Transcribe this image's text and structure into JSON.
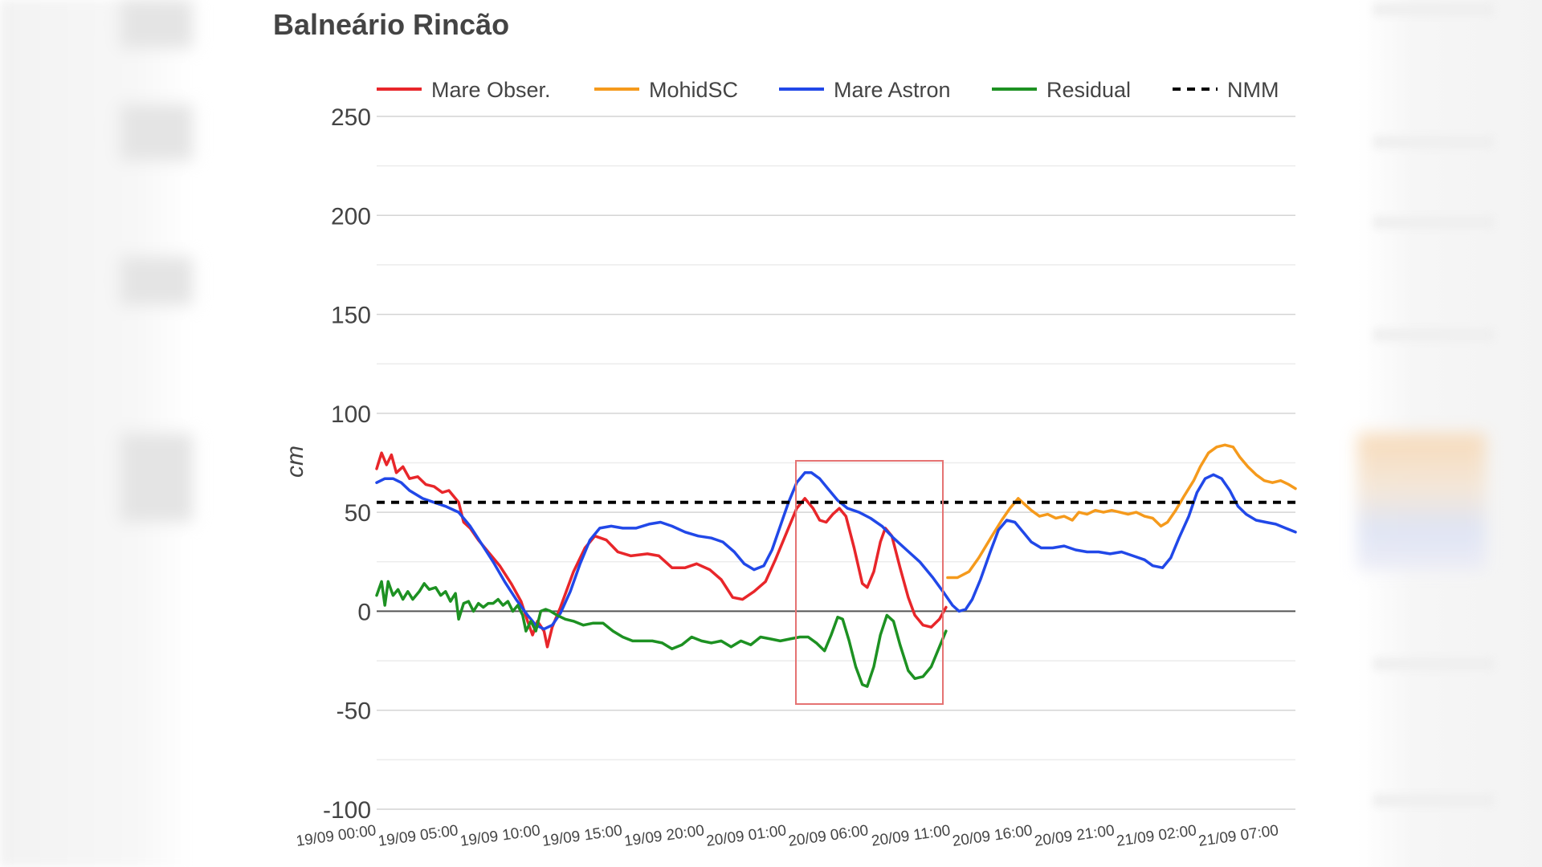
{
  "chart_data": {
    "type": "line",
    "title": "Balneário Rincão",
    "ylabel": "cm",
    "ylim": [
      -100,
      250
    ],
    "yticks": [
      250,
      200,
      150,
      100,
      50,
      0,
      -50,
      -100
    ],
    "grid": true,
    "legend_position": "top",
    "xlim": [
      0,
      56
    ],
    "x_unit": "hours from 19/09 00:00",
    "xtick_labels": [
      "19/09 00:00",
      "19/09 05:00",
      "19/09 10:00",
      "19/09 15:00",
      "19/09 20:00",
      "20/09 01:00",
      "20/09 06:00",
      "20/09 11:00",
      "20/09 16:00",
      "20/09 21:00",
      "21/09 02:00",
      "21/09 07:00"
    ],
    "xtick_values": [
      0,
      5,
      10,
      15,
      20,
      25,
      30,
      35,
      40,
      45,
      50,
      55
    ],
    "series": [
      {
        "name": "Mare Obser.",
        "color": "#e8262a",
        "points": [
          [
            0,
            72
          ],
          [
            0.3,
            80
          ],
          [
            0.6,
            74
          ],
          [
            0.9,
            79
          ],
          [
            1.2,
            70
          ],
          [
            1.6,
            73
          ],
          [
            2,
            67
          ],
          [
            2.5,
            68
          ],
          [
            3,
            64
          ],
          [
            3.5,
            63
          ],
          [
            4,
            60
          ],
          [
            4.4,
            61
          ],
          [
            4.7,
            58
          ],
          [
            5,
            55
          ],
          [
            5.3,
            45
          ],
          [
            5.7,
            42
          ],
          [
            6.2,
            36
          ],
          [
            6.8,
            30
          ],
          [
            7.5,
            23
          ],
          [
            8.2,
            14
          ],
          [
            8.8,
            5
          ],
          [
            9.2,
            -5
          ],
          [
            9.5,
            -12
          ],
          [
            9.8,
            -5
          ],
          [
            10.2,
            -10
          ],
          [
            10.4,
            -18
          ],
          [
            10.7,
            -8
          ],
          [
            11.2,
            2
          ],
          [
            12,
            20
          ],
          [
            12.7,
            32
          ],
          [
            13.3,
            38
          ],
          [
            14,
            36
          ],
          [
            14.7,
            30
          ],
          [
            15.5,
            28
          ],
          [
            16.5,
            29
          ],
          [
            17.2,
            28
          ],
          [
            18,
            22
          ],
          [
            18.8,
            22
          ],
          [
            19.5,
            24
          ],
          [
            20.3,
            21
          ],
          [
            21,
            16
          ],
          [
            21.7,
            7
          ],
          [
            22.3,
            6
          ],
          [
            23,
            10
          ],
          [
            23.7,
            15
          ],
          [
            24.3,
            26
          ],
          [
            25,
            40
          ],
          [
            25.6,
            52
          ],
          [
            26.1,
            57
          ],
          [
            26.6,
            52
          ],
          [
            27,
            46
          ],
          [
            27.4,
            45
          ],
          [
            27.8,
            49
          ],
          [
            28.2,
            52
          ],
          [
            28.6,
            48
          ],
          [
            29.1,
            32
          ],
          [
            29.6,
            14
          ],
          [
            29.9,
            12
          ],
          [
            30.3,
            20
          ],
          [
            30.7,
            35
          ],
          [
            31,
            42
          ],
          [
            31.4,
            38
          ],
          [
            31.9,
            22
          ],
          [
            32.4,
            7
          ],
          [
            32.8,
            -2
          ],
          [
            33.3,
            -7
          ],
          [
            33.8,
            -8
          ],
          [
            34.3,
            -4
          ],
          [
            34.7,
            2
          ]
        ]
      },
      {
        "name": "MohidSC",
        "color": "#f59a1c",
        "points": [
          [
            34.8,
            17
          ],
          [
            35.4,
            17
          ],
          [
            36.1,
            20
          ],
          [
            36.7,
            27
          ],
          [
            37.5,
            38
          ],
          [
            38.1,
            46
          ],
          [
            38.6,
            52
          ],
          [
            39.1,
            57
          ],
          [
            39.5,
            54
          ],
          [
            39.9,
            51
          ],
          [
            40.4,
            48
          ],
          [
            40.9,
            49
          ],
          [
            41.4,
            47
          ],
          [
            41.9,
            48
          ],
          [
            42.4,
            46
          ],
          [
            42.8,
            50
          ],
          [
            43.3,
            49
          ],
          [
            43.8,
            51
          ],
          [
            44.3,
            50
          ],
          [
            44.8,
            51
          ],
          [
            45.3,
            50
          ],
          [
            45.8,
            49
          ],
          [
            46.3,
            50
          ],
          [
            46.8,
            48
          ],
          [
            47.3,
            47
          ],
          [
            47.8,
            43
          ],
          [
            48.2,
            45
          ],
          [
            48.7,
            51
          ],
          [
            49.2,
            58
          ],
          [
            49.8,
            66
          ],
          [
            50.2,
            73
          ],
          [
            50.7,
            80
          ],
          [
            51.2,
            83
          ],
          [
            51.7,
            84
          ],
          [
            52.2,
            83
          ],
          [
            52.6,
            78
          ],
          [
            53.1,
            73
          ],
          [
            53.6,
            69
          ],
          [
            54.1,
            66
          ],
          [
            54.6,
            65
          ],
          [
            55.1,
            66
          ],
          [
            55.6,
            64
          ],
          [
            56,
            62
          ]
        ]
      },
      {
        "name": "Mare Astron",
        "color": "#2148e8",
        "points": [
          [
            0,
            65
          ],
          [
            0.5,
            67
          ],
          [
            1,
            67
          ],
          [
            1.5,
            65
          ],
          [
            2,
            61
          ],
          [
            2.8,
            57
          ],
          [
            3.5,
            55
          ],
          [
            4.2,
            53
          ],
          [
            5,
            50
          ],
          [
            5.7,
            43
          ],
          [
            6.4,
            34
          ],
          [
            7.1,
            25
          ],
          [
            7.8,
            15
          ],
          [
            8.5,
            6
          ],
          [
            9.2,
            -2
          ],
          [
            9.7,
            -7
          ],
          [
            10.2,
            -9
          ],
          [
            10.7,
            -7
          ],
          [
            11.2,
            -1
          ],
          [
            11.8,
            10
          ],
          [
            12.4,
            24
          ],
          [
            13,
            36
          ],
          [
            13.6,
            42
          ],
          [
            14.3,
            43
          ],
          [
            15,
            42
          ],
          [
            15.8,
            42
          ],
          [
            16.6,
            44
          ],
          [
            17.3,
            45
          ],
          [
            18,
            43
          ],
          [
            18.8,
            40
          ],
          [
            19.6,
            38
          ],
          [
            20.4,
            37
          ],
          [
            21.1,
            35
          ],
          [
            21.8,
            30
          ],
          [
            22.4,
            24
          ],
          [
            23,
            21
          ],
          [
            23.6,
            23
          ],
          [
            24.1,
            31
          ],
          [
            24.6,
            43
          ],
          [
            25.1,
            55
          ],
          [
            25.6,
            65
          ],
          [
            26.1,
            70
          ],
          [
            26.5,
            70
          ],
          [
            27,
            67
          ],
          [
            27.5,
            62
          ],
          [
            28.1,
            56
          ],
          [
            28.7,
            52
          ],
          [
            29.4,
            50
          ],
          [
            30.1,
            47
          ],
          [
            30.8,
            43
          ],
          [
            31.5,
            37
          ],
          [
            32.3,
            31
          ],
          [
            33.1,
            25
          ],
          [
            33.9,
            17
          ],
          [
            34.6,
            9
          ],
          [
            35.1,
            3
          ],
          [
            35.5,
            0
          ],
          [
            35.9,
            1
          ],
          [
            36.3,
            6
          ],
          [
            36.8,
            16
          ],
          [
            37.4,
            30
          ],
          [
            37.9,
            41
          ],
          [
            38.4,
            46
          ],
          [
            38.9,
            45
          ],
          [
            39.4,
            40
          ],
          [
            39.9,
            35
          ],
          [
            40.5,
            32
          ],
          [
            41.2,
            32
          ],
          [
            41.9,
            33
          ],
          [
            42.6,
            31
          ],
          [
            43.3,
            30
          ],
          [
            44,
            30
          ],
          [
            44.7,
            29
          ],
          [
            45.4,
            30
          ],
          [
            46.1,
            28
          ],
          [
            46.8,
            26
          ],
          [
            47.3,
            23
          ],
          [
            47.9,
            22
          ],
          [
            48.4,
            27
          ],
          [
            48.9,
            37
          ],
          [
            49.5,
            48
          ],
          [
            50,
            60
          ],
          [
            50.5,
            67
          ],
          [
            51,
            69
          ],
          [
            51.5,
            67
          ],
          [
            52,
            61
          ],
          [
            52.5,
            53
          ],
          [
            53,
            49
          ],
          [
            53.6,
            46
          ],
          [
            54.2,
            45
          ],
          [
            54.8,
            44
          ],
          [
            55.4,
            42
          ],
          [
            56,
            40
          ]
        ]
      },
      {
        "name": "Residual",
        "color": "#1d9122",
        "points": [
          [
            0,
            8
          ],
          [
            0.3,
            15
          ],
          [
            0.5,
            3
          ],
          [
            0.7,
            15
          ],
          [
            1,
            8
          ],
          [
            1.3,
            11
          ],
          [
            1.6,
            6
          ],
          [
            1.9,
            10
          ],
          [
            2.2,
            6
          ],
          [
            2.6,
            10
          ],
          [
            2.9,
            14
          ],
          [
            3.2,
            11
          ],
          [
            3.6,
            12
          ],
          [
            3.9,
            8
          ],
          [
            4.2,
            10
          ],
          [
            4.5,
            5
          ],
          [
            4.8,
            9
          ],
          [
            5,
            -4
          ],
          [
            5.3,
            4
          ],
          [
            5.6,
            5
          ],
          [
            5.9,
            0
          ],
          [
            6.2,
            4
          ],
          [
            6.5,
            2
          ],
          [
            6.8,
            4
          ],
          [
            7.1,
            4
          ],
          [
            7.4,
            6
          ],
          [
            7.7,
            3
          ],
          [
            8,
            5
          ],
          [
            8.3,
            0
          ],
          [
            8.6,
            3
          ],
          [
            8.9,
            -2
          ],
          [
            9.1,
            -10
          ],
          [
            9.4,
            -5
          ],
          [
            9.7,
            -10
          ],
          [
            10,
            0
          ],
          [
            10.3,
            1
          ],
          [
            10.6,
            0
          ],
          [
            11,
            -2
          ],
          [
            11.5,
            -4
          ],
          [
            12,
            -5
          ],
          [
            12.6,
            -7
          ],
          [
            13.2,
            -6
          ],
          [
            13.8,
            -6
          ],
          [
            14.4,
            -10
          ],
          [
            15,
            -13
          ],
          [
            15.6,
            -15
          ],
          [
            16.2,
            -15
          ],
          [
            16.8,
            -15
          ],
          [
            17.4,
            -16
          ],
          [
            18,
            -19
          ],
          [
            18.6,
            -17
          ],
          [
            19.2,
            -13
          ],
          [
            19.8,
            -15
          ],
          [
            20.4,
            -16
          ],
          [
            21,
            -15
          ],
          [
            21.6,
            -18
          ],
          [
            22.2,
            -15
          ],
          [
            22.8,
            -17
          ],
          [
            23.4,
            -13
          ],
          [
            24,
            -14
          ],
          [
            24.6,
            -15
          ],
          [
            25.2,
            -14
          ],
          [
            25.8,
            -13
          ],
          [
            26.3,
            -13
          ],
          [
            26.8,
            -16
          ],
          [
            27.3,
            -20
          ],
          [
            27.7,
            -12
          ],
          [
            28.1,
            -3
          ],
          [
            28.4,
            -4
          ],
          [
            28.8,
            -15
          ],
          [
            29.2,
            -28
          ],
          [
            29.6,
            -37
          ],
          [
            29.9,
            -38
          ],
          [
            30.3,
            -28
          ],
          [
            30.7,
            -12
          ],
          [
            31.1,
            -2
          ],
          [
            31.5,
            -5
          ],
          [
            31.9,
            -17
          ],
          [
            32.4,
            -30
          ],
          [
            32.8,
            -34
          ],
          [
            33.3,
            -33
          ],
          [
            33.8,
            -28
          ],
          [
            34.3,
            -18
          ],
          [
            34.7,
            -10
          ]
        ]
      },
      {
        "name": "NMM",
        "color": "#000000",
        "dashed": true,
        "points": [
          [
            0,
            55
          ],
          [
            56,
            55
          ]
        ]
      }
    ]
  }
}
